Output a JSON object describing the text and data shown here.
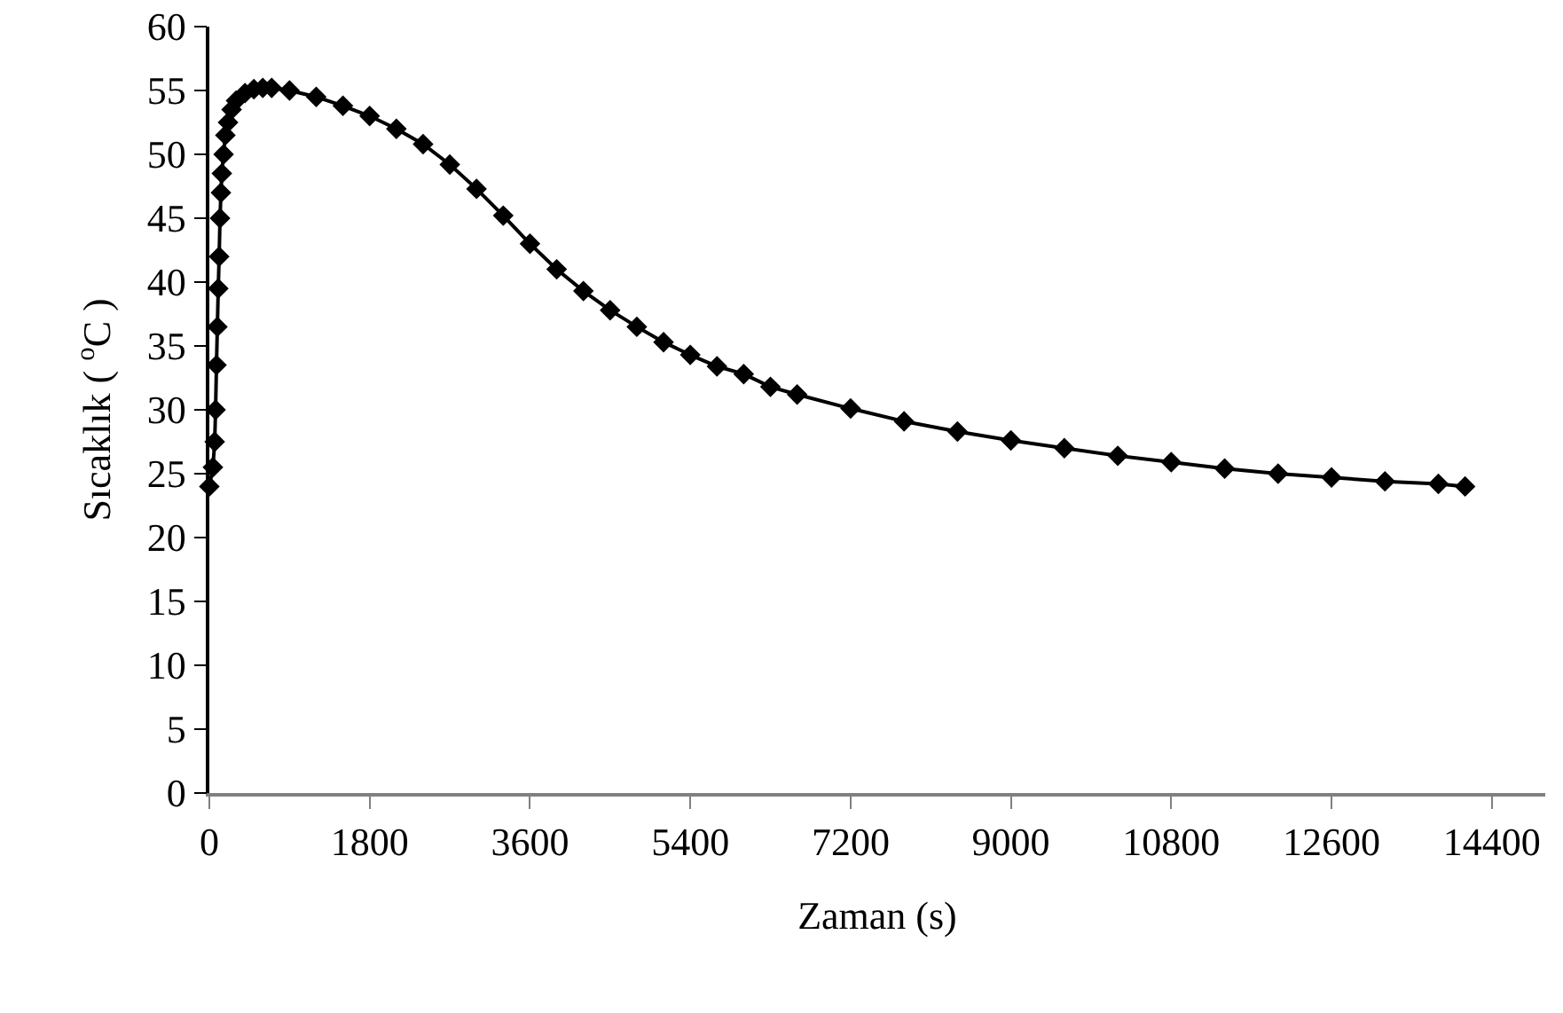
{
  "chart_data": {
    "type": "line",
    "xlabel": "Zaman (s)",
    "ylabel": "Sıcaklık ( $^{o}$C )",
    "x": [
      0,
      40,
      60,
      70,
      80,
      90,
      100,
      110,
      120,
      130,
      140,
      160,
      180,
      210,
      250,
      300,
      400,
      500,
      600,
      700,
      900,
      1200,
      1500,
      1800,
      2100,
      2400,
      2700,
      3000,
      3300,
      3600,
      3900,
      4200,
      4500,
      4800,
      5100,
      5400,
      5700,
      6000,
      6300,
      6600,
      7200,
      7800,
      8400,
      9000,
      9600,
      10200,
      10800,
      11400,
      12000,
      12600,
      13200,
      13800,
      14100
    ],
    "series": [
      {
        "color": "#000000",
        "values": [
          24,
          25.5,
          27.5,
          30,
          33.5,
          36.5,
          39.5,
          42,
          45,
          47,
          48.5,
          50,
          51.5,
          52.5,
          53.5,
          54.2,
          54.8,
          55.1,
          55.2,
          55.2,
          55,
          54.5,
          53.8,
          53,
          52,
          50.8,
          49.2,
          47.3,
          45.2,
          43,
          41,
          39.3,
          37.8,
          36.5,
          35.3,
          34.3,
          33.4,
          32.8,
          31.8,
          31.2,
          30.1,
          29.1,
          28.3,
          27.6,
          27,
          26.4,
          25.9,
          25.4,
          25,
          24.7,
          24.4,
          24.2,
          24
        ]
      }
    ],
    "xlim": [
      0,
      15000
    ],
    "xticks": [
      0,
      1800,
      3600,
      5400,
      7200,
      9000,
      10800,
      12600,
      14400
    ],
    "ylim": [
      0,
      60
    ],
    "yticks": [
      0,
      5,
      10,
      15,
      20,
      25,
      30,
      35,
      40,
      45,
      50,
      55,
      60
    ],
    "grid": false,
    "marker": "diamond",
    "line_style": "solid"
  }
}
